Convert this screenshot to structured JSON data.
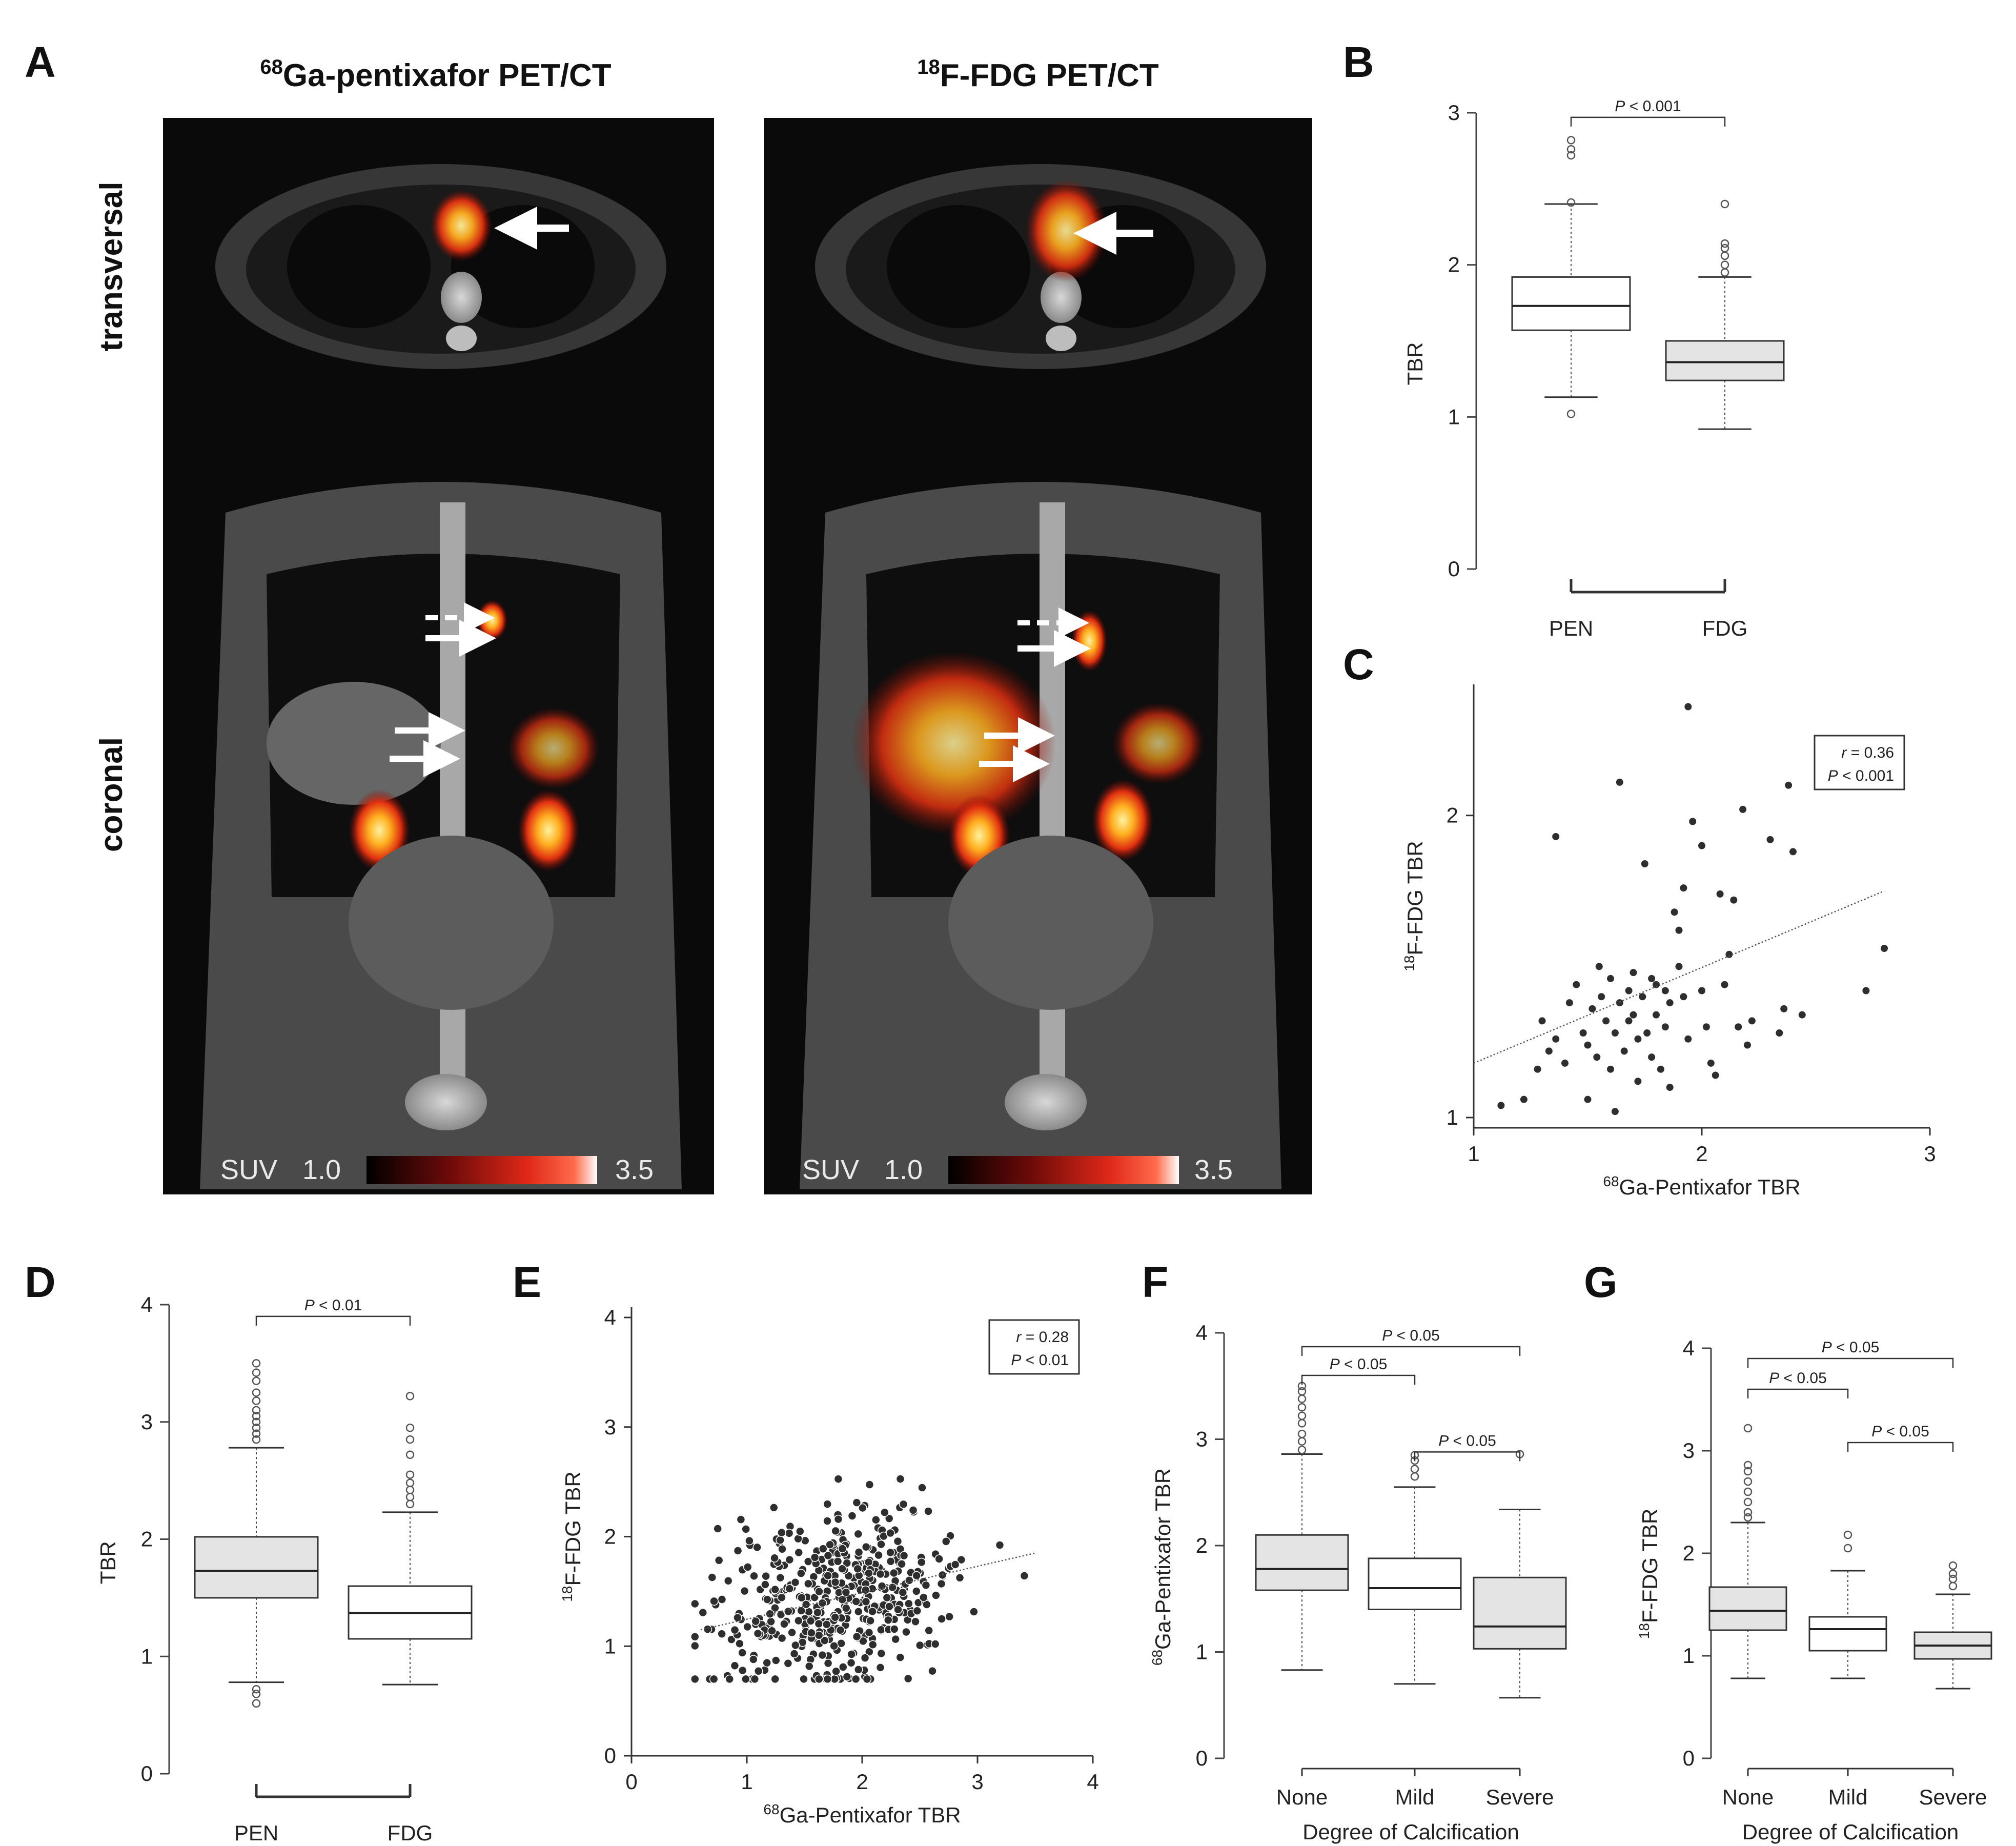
{
  "panels": {
    "A": {
      "label": "A",
      "title_left": {
        "sup": "68",
        "main": "Ga-pentixafor PET/CT"
      },
      "title_right": {
        "sup": "18",
        "main": "F-FDG PET/CT"
      },
      "row_labels": [
        "transversal",
        "coronal"
      ],
      "colorbar": {
        "prefix": "SUV",
        "min": "1.0",
        "max": "3.5"
      }
    },
    "B": {
      "label": "B"
    },
    "C": {
      "label": "C"
    },
    "D": {
      "label": "D"
    },
    "E": {
      "label": "E"
    },
    "F": {
      "label": "F"
    },
    "G": {
      "label": "G"
    }
  },
  "chart_data": [
    {
      "panel": "B",
      "type": "box",
      "ylabel": "TBR",
      "ylim": [
        0,
        3
      ],
      "yticks": [
        "0",
        "1",
        "2",
        "3"
      ],
      "categories": [
        "PEN",
        "FDG"
      ],
      "boxes": [
        {
          "name": "PEN",
          "fill": "#ffffff",
          "whisker_low": 1.13,
          "q1": 1.57,
          "median": 1.73,
          "q3": 1.92,
          "whisker_high": 2.4,
          "outliers": [
            1.02,
            2.41,
            2.72,
            2.76,
            2.82
          ]
        },
        {
          "name": "FDG",
          "fill": "#e4e4e4",
          "whisker_low": 0.92,
          "q1": 1.24,
          "median": 1.36,
          "q3": 1.5,
          "whisker_high": 1.92,
          "outliers": [
            1.95,
            2.0,
            2.06,
            2.11,
            2.14,
            2.4
          ]
        }
      ],
      "comparisons": [
        {
          "from": 0,
          "to": 1,
          "y": 2.97,
          "label": "P < 0.001"
        }
      ]
    },
    {
      "panel": "C",
      "type": "scatter",
      "xlabel": {
        "sup": "68",
        "main": "Ga-Pentixafor TBR"
      },
      "ylabel": {
        "sup": "18",
        "main": "F-FDG TBR"
      },
      "xlim": [
        1,
        3
      ],
      "ylim": [
        1,
        2.4
      ],
      "xticks": [
        "1",
        "2",
        "3"
      ],
      "yticks": [
        "1",
        "2"
      ],
      "stats": {
        "r": "r = 0.36",
        "p": "P < 0.001"
      },
      "trend": [
        [
          1,
          1.18
        ],
        [
          2.8,
          1.75
        ]
      ],
      "points": [
        [
          1.12,
          1.04
        ],
        [
          1.22,
          1.06
        ],
        [
          1.28,
          1.16
        ],
        [
          1.3,
          1.32
        ],
        [
          1.33,
          1.22
        ],
        [
          1.36,
          1.26
        ],
        [
          1.36,
          1.93
        ],
        [
          1.4,
          1.18
        ],
        [
          1.42,
          1.38
        ],
        [
          1.45,
          1.44
        ],
        [
          1.48,
          1.28
        ],
        [
          1.5,
          1.06
        ],
        [
          1.5,
          1.24
        ],
        [
          1.52,
          1.36
        ],
        [
          1.54,
          1.2
        ],
        [
          1.55,
          1.5
        ],
        [
          1.56,
          1.4
        ],
        [
          1.58,
          1.32
        ],
        [
          1.6,
          1.16
        ],
        [
          1.6,
          1.46
        ],
        [
          1.62,
          1.28
        ],
        [
          1.62,
          1.02
        ],
        [
          1.64,
          1.38
        ],
        [
          1.64,
          2.11
        ],
        [
          1.66,
          1.22
        ],
        [
          1.68,
          1.32
        ],
        [
          1.68,
          1.42
        ],
        [
          1.7,
          1.48
        ],
        [
          1.7,
          1.34
        ],
        [
          1.72,
          1.26
        ],
        [
          1.72,
          1.12
        ],
        [
          1.74,
          1.4
        ],
        [
          1.75,
          1.84
        ],
        [
          1.76,
          1.28
        ],
        [
          1.78,
          1.46
        ],
        [
          1.78,
          1.2
        ],
        [
          1.8,
          1.44
        ],
        [
          1.8,
          1.34
        ],
        [
          1.82,
          1.16
        ],
        [
          1.84,
          1.3
        ],
        [
          1.84,
          1.42
        ],
        [
          1.86,
          1.38
        ],
        [
          1.86,
          1.1
        ],
        [
          1.88,
          1.68
        ],
        [
          1.9,
          1.5
        ],
        [
          1.9,
          1.62
        ],
        [
          1.92,
          1.4
        ],
        [
          1.92,
          1.76
        ],
        [
          1.94,
          2.36
        ],
        [
          1.94,
          1.26
        ],
        [
          1.96,
          1.98
        ],
        [
          2.0,
          1.9
        ],
        [
          2.0,
          1.42
        ],
        [
          2.02,
          1.3
        ],
        [
          2.04,
          1.18
        ],
        [
          2.06,
          1.14
        ],
        [
          2.08,
          1.74
        ],
        [
          2.1,
          1.44
        ],
        [
          2.12,
          1.54
        ],
        [
          2.14,
          1.72
        ],
        [
          2.16,
          1.3
        ],
        [
          2.18,
          2.02
        ],
        [
          2.2,
          1.24
        ],
        [
          2.22,
          1.32
        ],
        [
          2.3,
          1.92
        ],
        [
          2.34,
          1.28
        ],
        [
          2.36,
          1.36
        ],
        [
          2.38,
          2.1
        ],
        [
          2.4,
          1.88
        ],
        [
          2.44,
          1.34
        ],
        [
          2.72,
          1.42
        ],
        [
          2.8,
          1.56
        ]
      ]
    },
    {
      "panel": "D",
      "type": "box",
      "ylabel": "TBR",
      "ylim": [
        0,
        4
      ],
      "yticks": [
        "0",
        "1",
        "2",
        "3",
        "4"
      ],
      "categories": [
        "PEN",
        "FDG"
      ],
      "boxes": [
        {
          "name": "PEN",
          "fill": "#e4e4e4",
          "whisker_low": 0.78,
          "q1": 1.5,
          "median": 1.73,
          "q3": 2.02,
          "whisker_high": 2.78,
          "outliers": [
            0.6,
            0.68,
            0.72,
            2.85,
            2.9,
            2.95,
            3.0,
            3.05,
            3.1,
            3.18,
            3.25,
            3.35,
            3.42,
            3.5
          ]
        },
        {
          "name": "FDG",
          "fill": "#ffffff",
          "whisker_low": 0.76,
          "q1": 1.15,
          "median": 1.37,
          "q3": 1.6,
          "whisker_high": 2.23,
          "outliers": [
            2.3,
            2.36,
            2.42,
            2.48,
            2.55,
            2.72,
            2.85,
            2.95,
            3.22
          ]
        }
      ],
      "comparisons": [
        {
          "from": 0,
          "to": 1,
          "y": 3.9,
          "label": "P < 0.01"
        }
      ]
    },
    {
      "panel": "E",
      "type": "scatter",
      "xlabel": {
        "sup": "68",
        "main": "Ga-Pentixafor TBR"
      },
      "ylabel": {
        "sup": "18",
        "main": "F-FDG TBR"
      },
      "xlim": [
        0,
        4
      ],
      "ylim": [
        0,
        4
      ],
      "xticks": [
        "0",
        "1",
        "2",
        "3",
        "4"
      ],
      "yticks": [
        "0",
        "1",
        "2",
        "3",
        "4"
      ],
      "stats": {
        "r": "r = 0.28",
        "p": "P < 0.01"
      },
      "trend": [
        [
          0.6,
          1.15
        ],
        [
          3.5,
          1.85
        ]
      ],
      "points": [],
      "generated_points": {
        "count": 480,
        "x_center": 1.75,
        "y_center": 1.4,
        "note": "dense point cloud"
      }
    },
    {
      "panel": "F",
      "type": "box",
      "xlabel": "Degree of Calcification",
      "ylabel": {
        "sup": "68",
        "main": "Ga-Pentixafor TBR"
      },
      "ylim": [
        0,
        4
      ],
      "yticks": [
        "0",
        "1",
        "2",
        "3",
        "4"
      ],
      "categories": [
        "None",
        "Mild",
        "Severe"
      ],
      "boxes": [
        {
          "name": "None",
          "fill": "#e4e4e4",
          "whisker_low": 0.83,
          "q1": 1.58,
          "median": 1.78,
          "q3": 2.1,
          "whisker_high": 2.86,
          "outliers": [
            2.9,
            2.98,
            3.05,
            3.15,
            3.22,
            3.3,
            3.38,
            3.45,
            3.5
          ]
        },
        {
          "name": "Mild",
          "fill": "#ffffff",
          "whisker_low": 0.7,
          "q1": 1.4,
          "median": 1.6,
          "q3": 1.88,
          "whisker_high": 2.55,
          "outliers": [
            2.65,
            2.72,
            2.8,
            2.85
          ]
        },
        {
          "name": "Severe",
          "fill": "#e4e4e4",
          "whisker_low": 0.57,
          "q1": 1.03,
          "median": 1.24,
          "q3": 1.7,
          "whisker_high": 2.34,
          "outliers": [
            2.86
          ]
        }
      ],
      "comparisons": [
        {
          "from": 0,
          "to": 2,
          "y": 3.87,
          "label": "P < 0.05"
        },
        {
          "from": 0,
          "to": 1,
          "y": 3.6,
          "label": "P < 0.05"
        },
        {
          "from": 1,
          "to": 2,
          "y": 2.88,
          "label": "P < 0.05"
        }
      ]
    },
    {
      "panel": "G",
      "type": "box",
      "xlabel": "Degree of Calcification",
      "ylabel": {
        "sup": "18",
        "main": "F-FDG TBR"
      },
      "ylim": [
        0,
        4
      ],
      "yticks": [
        "0",
        "1",
        "2",
        "3",
        "4"
      ],
      "categories": [
        "None",
        "Mild",
        "Severe"
      ],
      "boxes": [
        {
          "name": "None",
          "fill": "#e4e4e4",
          "whisker_low": 0.78,
          "q1": 1.25,
          "median": 1.44,
          "q3": 1.67,
          "whisker_high": 2.3,
          "outliers": [
            2.35,
            2.4,
            2.5,
            2.6,
            2.7,
            2.8,
            2.86,
            3.22
          ]
        },
        {
          "name": "Mild",
          "fill": "#ffffff",
          "whisker_low": 0.78,
          "q1": 1.05,
          "median": 1.26,
          "q3": 1.38,
          "whisker_high": 1.83,
          "outliers": [
            2.05,
            2.18
          ]
        },
        {
          "name": "Severe",
          "fill": "#e4e4e4",
          "whisker_low": 0.68,
          "q1": 0.97,
          "median": 1.1,
          "q3": 1.23,
          "whisker_high": 1.6,
          "outliers": [
            1.68,
            1.75,
            1.8,
            1.88
          ]
        }
      ],
      "comparisons": [
        {
          "from": 0,
          "to": 2,
          "y": 3.9,
          "label": "P < 0.05"
        },
        {
          "from": 0,
          "to": 1,
          "y": 3.6,
          "label": "P < 0.05"
        },
        {
          "from": 1,
          "to": 2,
          "y": 3.08,
          "label": "P < 0.05"
        }
      ]
    }
  ]
}
